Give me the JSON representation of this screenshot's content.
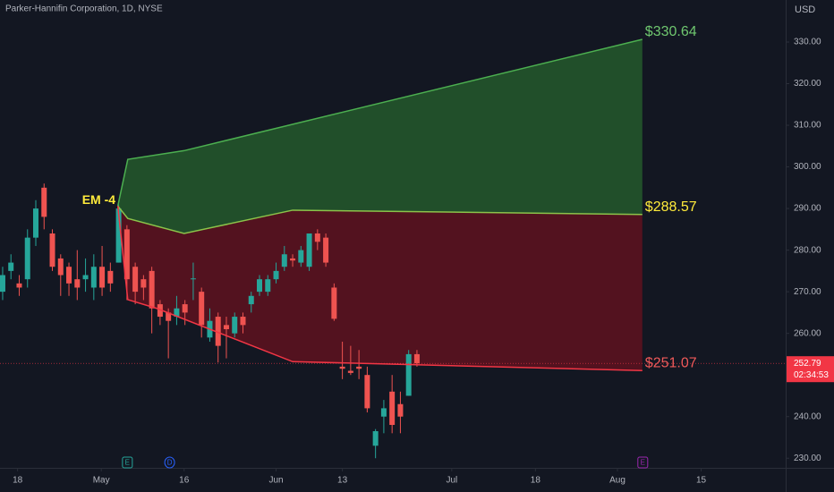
{
  "chart_data": {
    "type": "candlestick",
    "title": "Parker-Hannifin Corporation, 1D, NYSE",
    "currency": "USD",
    "up_color": "#26a69a",
    "down_color": "#ef5350",
    "series": [
      {
        "name": "PH",
        "open": [
          270,
          275,
          272,
          273,
          283,
          295,
          284,
          278,
          276,
          273,
          273,
          271,
          276,
          275,
          277,
          285,
          276,
          273,
          275,
          267,
          265,
          264,
          267,
          273,
          270,
          259,
          264,
          262,
          260,
          264,
          267,
          270,
          270,
          273,
          276,
          278,
          277,
          276,
          284,
          283,
          271,
          252,
          251,
          252,
          250,
          233,
          240,
          246,
          243,
          245,
          255
        ],
        "high": [
          276,
          279,
          274,
          285,
          292,
          296,
          285,
          279,
          277,
          280,
          278,
          279,
          281,
          277,
          291,
          286,
          277,
          274,
          276,
          268,
          266,
          269,
          268,
          277,
          271,
          266,
          265,
          264,
          265,
          265,
          270,
          274,
          274,
          277,
          281,
          279,
          281,
          284,
          285,
          284,
          272,
          258,
          257,
          256,
          252,
          237,
          244,
          250,
          246,
          256,
          256
        ],
        "low": [
          268,
          273,
          269,
          271,
          281,
          285,
          275,
          269,
          269,
          268,
          270,
          268,
          269,
          270,
          277,
          268,
          267,
          268,
          260,
          262,
          254,
          262,
          262,
          268,
          259,
          258,
          253,
          254,
          259,
          260,
          265,
          269,
          269,
          272,
          275,
          276,
          276,
          275,
          280,
          276,
          263,
          249,
          250,
          249,
          241,
          230,
          236,
          236,
          236,
          245,
          252
        ],
        "close": [
          274,
          277,
          271,
          283,
          290,
          288,
          276,
          274,
          272,
          271,
          274,
          276,
          271,
          272,
          290,
          273,
          270,
          271,
          266,
          264,
          263,
          266,
          265,
          273.2,
          262,
          263,
          257,
          261,
          264,
          262,
          269,
          273,
          273,
          275,
          279,
          277.5,
          280,
          284,
          282,
          277,
          263.5,
          251.5,
          250.5,
          251.5,
          242,
          236.5,
          242,
          238,
          240,
          255,
          252.79
        ]
      }
    ],
    "bands": [
      {
        "name": "upper",
        "color": "#4caf50",
        "x": [
          13.9,
          15.1,
          21.9,
          77.2
        ],
        "values": [
          290.6,
          301.8,
          303.9,
          330.64
        ],
        "value_label": "$330.64",
        "label_color": "#6fc76f"
      },
      {
        "name": "mid",
        "color": "#8bc34a",
        "x": [
          13.9,
          15.1,
          21.9,
          35.0,
          77.2
        ],
        "values": [
          290.6,
          287.6,
          284,
          289.6,
          288.57
        ],
        "value_label": "$288.57",
        "label_color": "#ffeb3b"
      },
      {
        "name": "lower",
        "color": "#f23645",
        "x": [
          13.9,
          15.1,
          18.6,
          35.0,
          77.2
        ],
        "values": [
          290.6,
          268.1,
          266,
          253.2,
          251.07
        ],
        "value_label": "$251.07",
        "label_color": "#f05a5a"
      }
    ],
    "annotation": {
      "text": "EM -4",
      "x": 11.6,
      "y": 291.9
    },
    "last_price": 252.79,
    "countdown": "02:34:53",
    "events": [
      {
        "x": 15.0,
        "label": "E",
        "color": "#26a69a"
      },
      {
        "x": 20.1,
        "label": "D",
        "color": "#2962ff"
      },
      {
        "x": 77.2,
        "label": "E",
        "color": "#9c27b0"
      }
    ],
    "xlim": [
      -0.32,
      94.5
    ],
    "ylim": [
      227.9,
      340.1
    ],
    "yticks": [
      {
        "value": 230,
        "label": "230.00"
      },
      {
        "value": 240,
        "label": "240.00"
      },
      {
        "value": 250,
        "label": "250.00"
      },
      {
        "value": 260,
        "label": "260.00"
      },
      {
        "value": 270,
        "label": "270.00"
      },
      {
        "value": 280,
        "label": "280.00"
      },
      {
        "value": 290,
        "label": "290.00"
      },
      {
        "value": 300,
        "label": "300.00"
      },
      {
        "value": 310,
        "label": "310.00"
      },
      {
        "value": 320,
        "label": "320.00"
      },
      {
        "value": 330,
        "label": "330.00"
      }
    ],
    "xticks": [
      {
        "value": 1.8,
        "label": "18"
      },
      {
        "value": 11.9,
        "label": "May"
      },
      {
        "value": 21.9,
        "label": "16"
      },
      {
        "value": 33.0,
        "label": "Jun"
      },
      {
        "value": 41.0,
        "label": "13"
      },
      {
        "value": 54.2,
        "label": "Jul"
      },
      {
        "value": 64.3,
        "label": "18"
      },
      {
        "value": 74.2,
        "label": "Aug"
      },
      {
        "value": 84.3,
        "label": "15"
      }
    ]
  }
}
